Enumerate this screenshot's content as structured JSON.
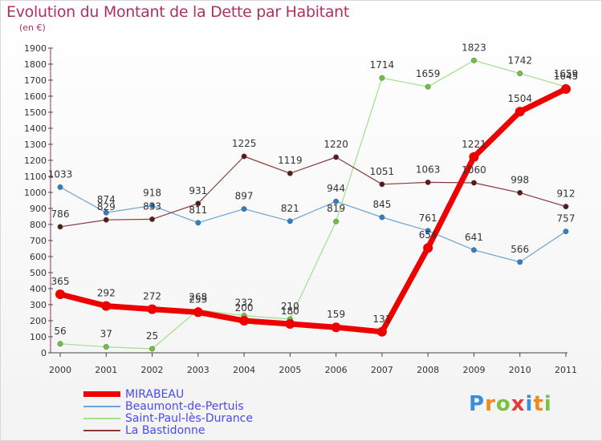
{
  "title": "Evolution du Montant de la Dette par Habitant",
  "unit_label": "(en €)",
  "logo": {
    "text": "Proxiti",
    "letters": [
      "P",
      "r",
      "o",
      "x",
      "i",
      "t",
      "i"
    ],
    "colors": [
      "#3b8fd8",
      "#f08a1c",
      "#7cc242",
      "#e23b3b",
      "#3b8fd8",
      "#f08a1c",
      "#7cc242"
    ]
  },
  "chart_data": {
    "type": "line",
    "title": "Evolution du Montant de la Dette par Habitant",
    "ylabel": "(en €)",
    "x": [
      "2000",
      "2001",
      "2002",
      "2003",
      "2004",
      "2005",
      "2006",
      "2007",
      "2008",
      "2009",
      "2010",
      "2011"
    ],
    "ylim": [
      0,
      1900
    ],
    "yticks": [
      0,
      100,
      200,
      300,
      400,
      500,
      600,
      700,
      800,
      900,
      1000,
      1100,
      1200,
      1300,
      1400,
      1500,
      1600,
      1700,
      1800,
      1900
    ],
    "grid": false,
    "legend_position": "bottom-left",
    "series": [
      {
        "name": "Beaumont-de-Pertuis",
        "color": "#6aa3d5",
        "marker": "#2f7fc6",
        "width": 1.2,
        "values": [
          1033,
          874,
          918,
          811,
          897,
          821,
          944,
          845,
          761,
          641,
          566,
          757
        ],
        "labels": [
          "1033",
          "874",
          "918",
          "811",
          "897",
          "821",
          "944",
          "845",
          "761",
          "641",
          "566",
          "757"
        ]
      },
      {
        "name": "Saint-Paul-lès-Durance",
        "color": "#9fe08a",
        "marker": "#6cc43c",
        "width": 1.2,
        "values": [
          56,
          37,
          25,
          268,
          232,
          210,
          819,
          1714,
          1659,
          1823,
          1742,
          1659
        ],
        "labels": [
          "56",
          "37",
          "25",
          "268",
          "232",
          "210",
          "819",
          "1714",
          "1659",
          "1823",
          "1742",
          "1659"
        ]
      },
      {
        "name": "La Bastidonne",
        "color": "#8a3a3a",
        "marker": "#5a1a1a",
        "width": 1.2,
        "values": [
          786,
          829,
          833,
          931,
          1225,
          1119,
          1220,
          1051,
          1063,
          1060,
          998,
          912
        ],
        "labels": [
          "786",
          "829",
          "833",
          "931",
          "1225",
          "1119",
          "1220",
          "1051",
          "1063",
          "1060",
          "998",
          "912"
        ]
      },
      {
        "name": "MIRABEAU",
        "color": "#ee0000",
        "marker": "#ee0000",
        "width": 7,
        "values": [
          365,
          292,
          272,
          253,
          200,
          180,
          159,
          131,
          654,
          1221,
          1504,
          1645
        ],
        "labels": [
          "365",
          "292",
          "272",
          "253",
          "200",
          "180",
          "159",
          "131",
          "654",
          "1221",
          "1504",
          "1645"
        ]
      }
    ],
    "legend": [
      {
        "name": "MIRABEAU",
        "color": "#ee0000",
        "width": 7
      },
      {
        "name": "Beaumont-de-Pertuis",
        "color": "#6aa3d5",
        "width": 2
      },
      {
        "name": "Saint-Paul-lès-Durance",
        "color": "#9fe08a",
        "width": 2
      },
      {
        "name": "La Bastidonne",
        "color": "#8a3a3a",
        "width": 2
      }
    ]
  }
}
